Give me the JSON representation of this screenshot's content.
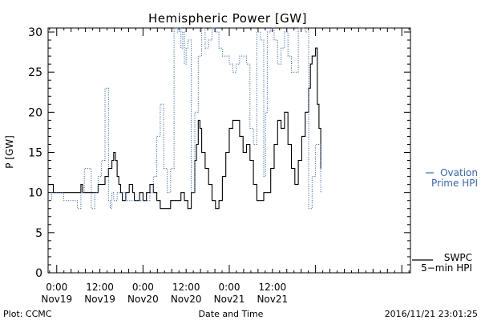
{
  "chart_data": {
    "type": "line",
    "title": "Hemispheric Power [GW]",
    "ylabel": "P [GW]",
    "xlabel": "Date and Time",
    "ylim": [
      0,
      30.5
    ],
    "yticks": [
      0,
      5,
      10,
      15,
      20,
      25,
      30
    ],
    "xlim": [
      -0.05,
      2.05
    ],
    "xticks": [
      {
        "x": 0.0,
        "line1": "0:00",
        "line2": "Nov19"
      },
      {
        "x": 0.25,
        "line1": "12:00",
        "line2": "Nov19"
      },
      {
        "x": 0.5,
        "line1": "0:00",
        "line2": "Nov20"
      },
      {
        "x": 0.75,
        "line1": "12:00",
        "line2": "Nov20"
      },
      {
        "x": 1.0,
        "line1": "0:00",
        "line2": "Nov21"
      },
      {
        "x": 1.25,
        "line1": "12:00",
        "line2": "Nov21"
      }
    ],
    "footer_left": "Plot: CCMC",
    "footer_right": "2016/11/21 23:01:25",
    "grid": false,
    "series": [
      {
        "name": "SWPC 5-min HPI",
        "legend_line1": "SWPC",
        "legend_line2": "5−min HPI",
        "style": "solid",
        "color": "#000000",
        "x": [
          -0.05,
          -0.03,
          -0.02,
          0.0,
          0.05,
          0.1,
          0.14,
          0.15,
          0.16,
          0.18,
          0.2,
          0.22,
          0.24,
          0.26,
          0.28,
          0.3,
          0.32,
          0.33,
          0.34,
          0.35,
          0.36,
          0.37,
          0.38,
          0.39,
          0.4,
          0.42,
          0.44,
          0.45,
          0.46,
          0.48,
          0.5,
          0.52,
          0.54,
          0.56,
          0.58,
          0.6,
          0.62,
          0.64,
          0.66,
          0.68,
          0.7,
          0.72,
          0.74,
          0.76,
          0.78,
          0.8,
          0.81,
          0.82,
          0.83,
          0.84,
          0.86,
          0.88,
          0.9,
          0.92,
          0.94,
          0.96,
          0.98,
          1.0,
          1.02,
          1.04,
          1.06,
          1.08,
          1.1,
          1.12,
          1.14,
          1.16,
          1.18,
          1.2,
          1.22,
          1.24,
          1.26,
          1.28,
          1.3,
          1.32,
          1.34,
          1.36,
          1.38,
          1.4,
          1.42,
          1.44,
          1.46,
          1.47,
          1.48,
          1.49,
          1.5,
          1.51,
          1.52,
          1.53
        ],
        "y": [
          11,
          11,
          10,
          10,
          10,
          10,
          11,
          10,
          10,
          10,
          10,
          10,
          11,
          11,
          12,
          13,
          14,
          15,
          14,
          12,
          11,
          10,
          9,
          9,
          10,
          11,
          10,
          9,
          9,
          10,
          9,
          10,
          11,
          10,
          9,
          8,
          8,
          8,
          9,
          9,
          9,
          10,
          9,
          8,
          10,
          14,
          16,
          19,
          18,
          15,
          13,
          11,
          9,
          8,
          9,
          12,
          15,
          18,
          19,
          19,
          17,
          15,
          16,
          14,
          11,
          9,
          9,
          10,
          10,
          13,
          16,
          19,
          18,
          20,
          16,
          13,
          11,
          14,
          17,
          20,
          23,
          26,
          27,
          27,
          28,
          21,
          18,
          13
        ]
      },
      {
        "name": "Ovation Prime HPI",
        "legend_line1": "Ovation",
        "legend_line2": "Prime HPI",
        "style": "dotted",
        "color": "#3366cc",
        "x": [
          -0.05,
          -0.03,
          0.0,
          0.04,
          0.08,
          0.1,
          0.12,
          0.14,
          0.16,
          0.2,
          0.22,
          0.24,
          0.26,
          0.28,
          0.3,
          0.31,
          0.32,
          0.33,
          0.34,
          0.35,
          0.38,
          0.4,
          0.45,
          0.48,
          0.52,
          0.54,
          0.56,
          0.58,
          0.6,
          0.62,
          0.64,
          0.66,
          0.68,
          0.7,
          0.71,
          0.72,
          0.73,
          0.74,
          0.75,
          0.76,
          0.78,
          0.8,
          0.82,
          0.84,
          0.86,
          0.88,
          0.9,
          0.92,
          0.94,
          0.96,
          0.98,
          1.0,
          1.02,
          1.04,
          1.06,
          1.08,
          1.1,
          1.12,
          1.14,
          1.16,
          1.18,
          1.2,
          1.21,
          1.22,
          1.24,
          1.26,
          1.28,
          1.3,
          1.32,
          1.34,
          1.36,
          1.38,
          1.4,
          1.42,
          1.44,
          1.46,
          1.48,
          1.5,
          1.53
        ],
        "y": [
          9,
          10,
          10,
          9,
          9,
          9,
          8,
          10,
          13,
          8,
          10,
          12,
          14,
          23,
          9,
          8,
          10,
          9,
          9,
          10,
          10,
          9,
          9,
          9,
          9,
          10,
          12,
          17,
          21,
          13,
          10,
          13,
          31,
          30,
          31,
          28,
          30,
          26,
          28,
          29,
          10,
          20,
          27,
          31,
          28,
          29,
          31,
          30,
          28,
          27,
          27,
          26,
          25,
          26,
          27,
          27,
          26,
          18,
          16,
          30,
          29,
          12,
          20,
          30,
          31,
          29,
          26,
          28,
          30,
          27,
          25,
          25,
          31,
          31,
          30,
          8,
          12,
          16,
          10
        ]
      }
    ]
  }
}
